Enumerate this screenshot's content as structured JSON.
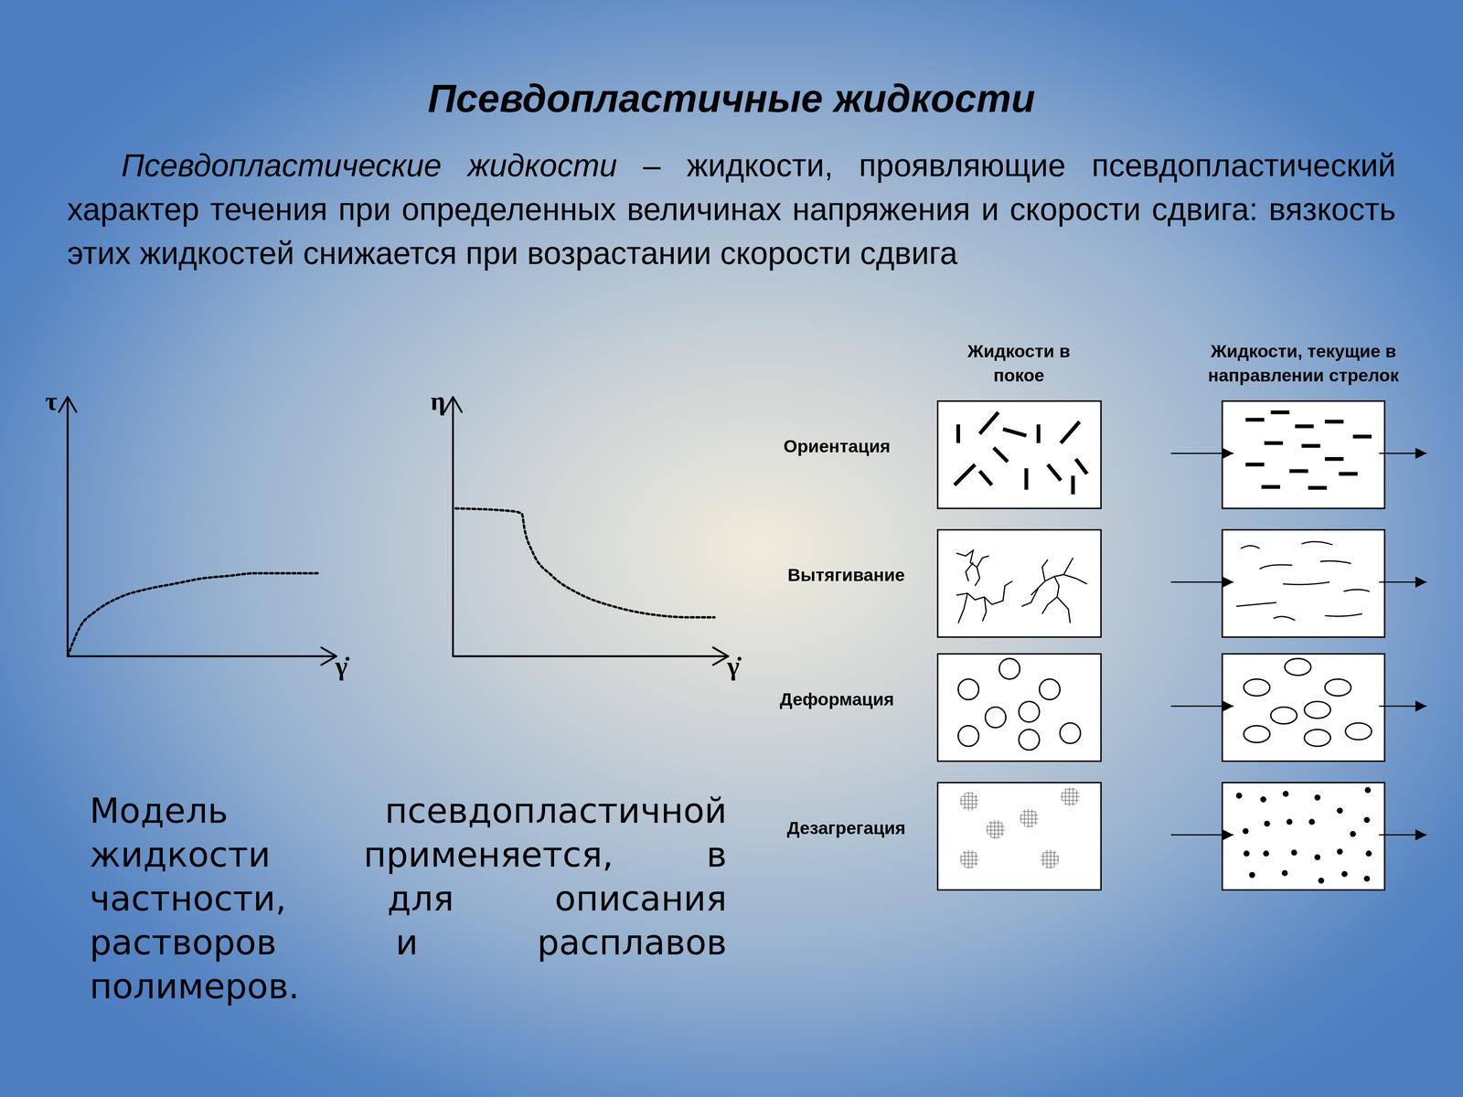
{
  "title": "Псевдопластичные жидкости",
  "definition": {
    "term": "Псевдопластические жидкости",
    "text": "– жидкости, проявляющие псевдопласти­ческий характер течения при определенных величинах напряжения и скорости сдвига: вязкость этих жидкостей снижается при возрастании скорости сдвига"
  },
  "chart_data": [
    {
      "type": "line",
      "x_label": "γ̇",
      "y_label": "τ",
      "x": [
        0,
        5,
        10,
        20,
        30,
        40,
        50,
        60,
        70,
        80,
        93
      ],
      "values": [
        0,
        12,
        17,
        23,
        26,
        28,
        30,
        31,
        32,
        32,
        32
      ],
      "xlim": [
        0,
        100
      ],
      "ylim": [
        0,
        100
      ],
      "tick_labels": false,
      "line_style": "dotted"
    },
    {
      "type": "line",
      "x_label": "γ̇",
      "y_label": "η",
      "x": [
        1,
        21,
        25,
        26,
        29,
        36,
        46,
        59,
        73,
        86,
        95
      ],
      "values": [
        57,
        56,
        55,
        49,
        40,
        31,
        24,
        19,
        16,
        15,
        15
      ],
      "xlim": [
        0,
        100
      ],
      "ylim": [
        0,
        100
      ],
      "tick_labels": false,
      "line_style": "dotted"
    }
  ],
  "diagram": {
    "columns": [
      "Жидкости в покое",
      "Жидкости, текущие в направлении стрелок"
    ],
    "rows": [
      "Ориентация",
      "Вытягивание",
      "Деформация",
      "Дезагрегация"
    ]
  },
  "note": "Модель псевдопластичной жидкости применяется, в частности, для описания растворов и расплавов полимеров."
}
